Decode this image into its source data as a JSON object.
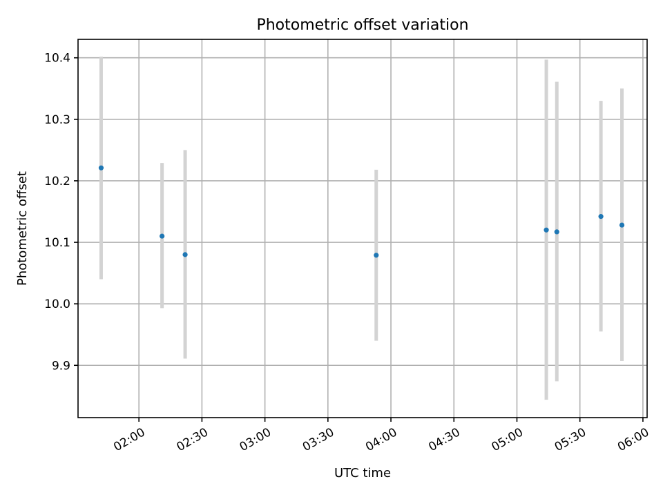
{
  "chart_data": {
    "type": "scatter",
    "title": "Photometric offset variation",
    "xlabel": "UTC time",
    "ylabel": "Photometric offset",
    "x_ticks": [
      "02:00",
      "02:30",
      "03:00",
      "03:30",
      "04:00",
      "04:30",
      "05:00",
      "05:30",
      "06:00"
    ],
    "y_ticks": [
      "9.9",
      "10.0",
      "10.1",
      "10.2",
      "10.3",
      "10.4"
    ],
    "xlim": [
      "01:31",
      "06:02"
    ],
    "ylim": [
      9.815,
      10.43
    ],
    "grid": true,
    "points": [
      {
        "x": "01:42",
        "y": 10.221,
        "y_low": 10.04,
        "y_high": 10.402
      },
      {
        "x": "02:11",
        "y": 10.11,
        "y_low": 9.993,
        "y_high": 10.229
      },
      {
        "x": "02:22",
        "y": 10.08,
        "y_low": 9.911,
        "y_high": 10.25
      },
      {
        "x": "03:53",
        "y": 10.079,
        "y_low": 9.94,
        "y_high": 10.218
      },
      {
        "x": "05:14",
        "y": 10.12,
        "y_low": 9.844,
        "y_high": 10.397
      },
      {
        "x": "05:19",
        "y": 10.117,
        "y_low": 9.874,
        "y_high": 10.361
      },
      {
        "x": "05:40",
        "y": 10.142,
        "y_low": 9.955,
        "y_high": 10.33
      },
      {
        "x": "05:50",
        "y": 10.128,
        "y_low": 9.907,
        "y_high": 10.35
      }
    ],
    "colors": {
      "points": "#1f77b4",
      "error_bars": "#d3d3d3",
      "grid": "#b0b0b0"
    }
  }
}
